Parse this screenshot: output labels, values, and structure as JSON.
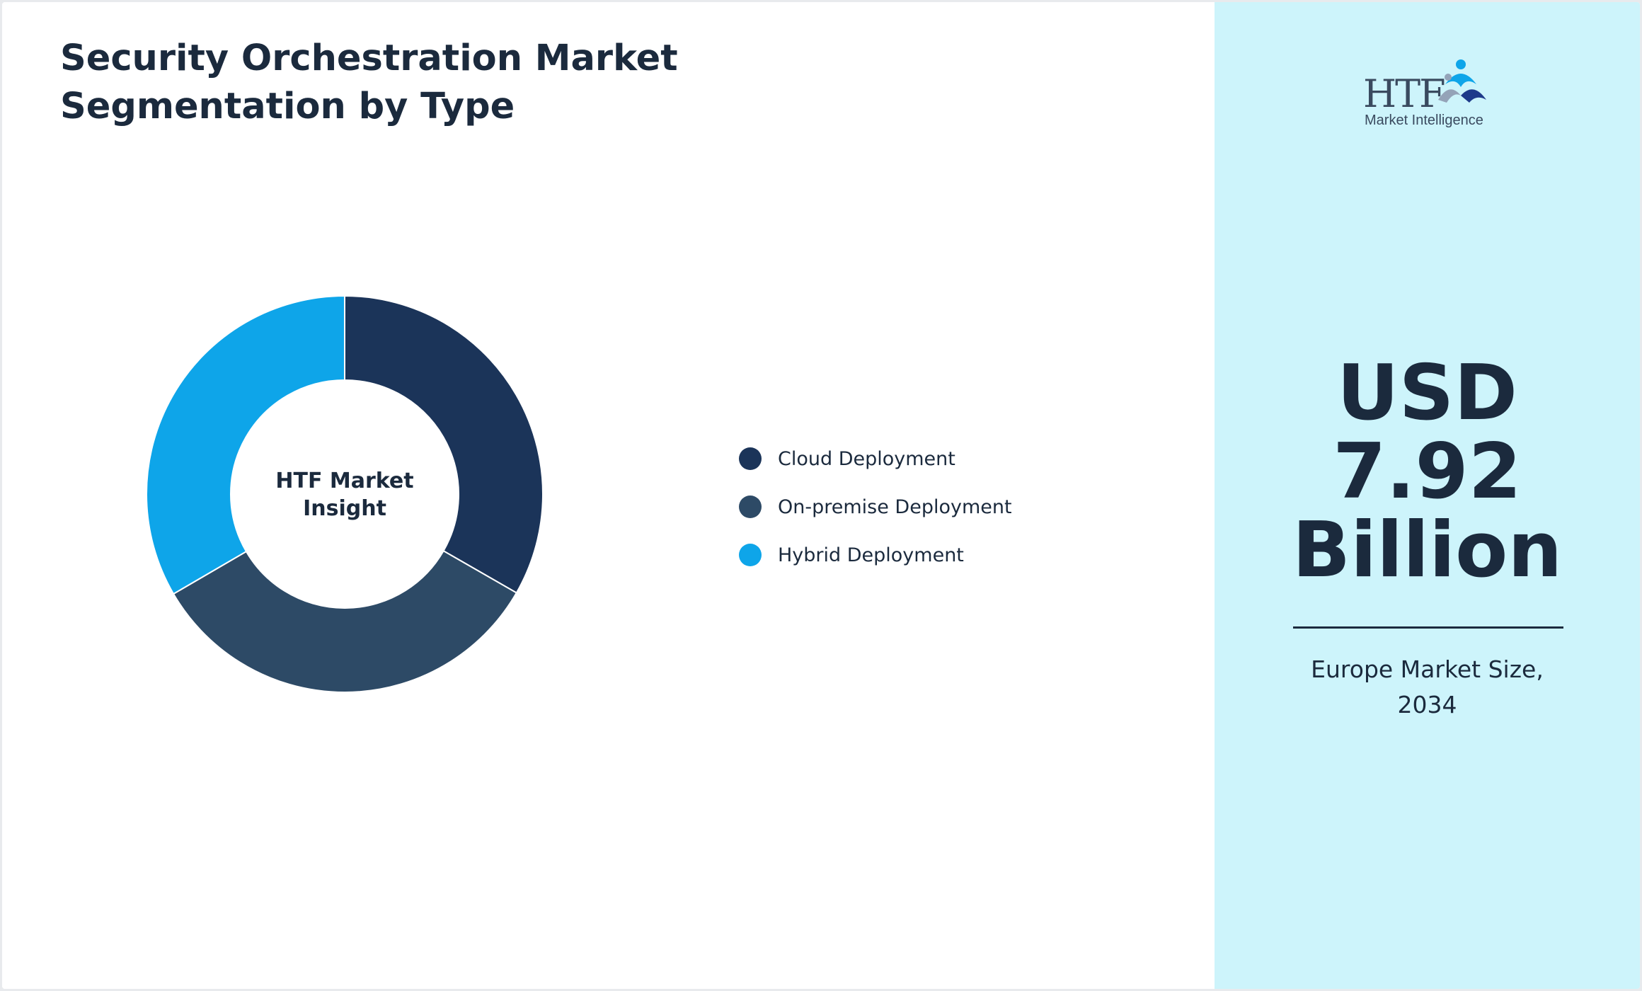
{
  "title_lines": [
    "Security Orchestration Market",
    "Segmentation by Type"
  ],
  "center_label_lines": [
    "HTF Market",
    "Insight"
  ],
  "logo": {
    "brand": "HTF",
    "tagline": "Market Intelligence"
  },
  "highlight": {
    "value_lines": [
      "USD",
      "7.92",
      "Billion"
    ],
    "caption_lines": [
      "Europe Market Size,",
      "2034"
    ]
  },
  "colors": {
    "cloud": "#1b3459",
    "on_premise": "#2d4a66",
    "hybrid": "#0ea5e9",
    "text": "#1b2a3d",
    "right_panel_bg": "#cdf4fb"
  },
  "chart_data": {
    "type": "pie",
    "donut": true,
    "categories": [
      "Cloud Deployment",
      "On-premise Deployment",
      "Hybrid Deployment"
    ],
    "values": [
      33.3,
      33.3,
      33.4
    ],
    "colors": [
      "#1b3459",
      "#2d4a66",
      "#0ea5e9"
    ],
    "legend_position": "right"
  }
}
